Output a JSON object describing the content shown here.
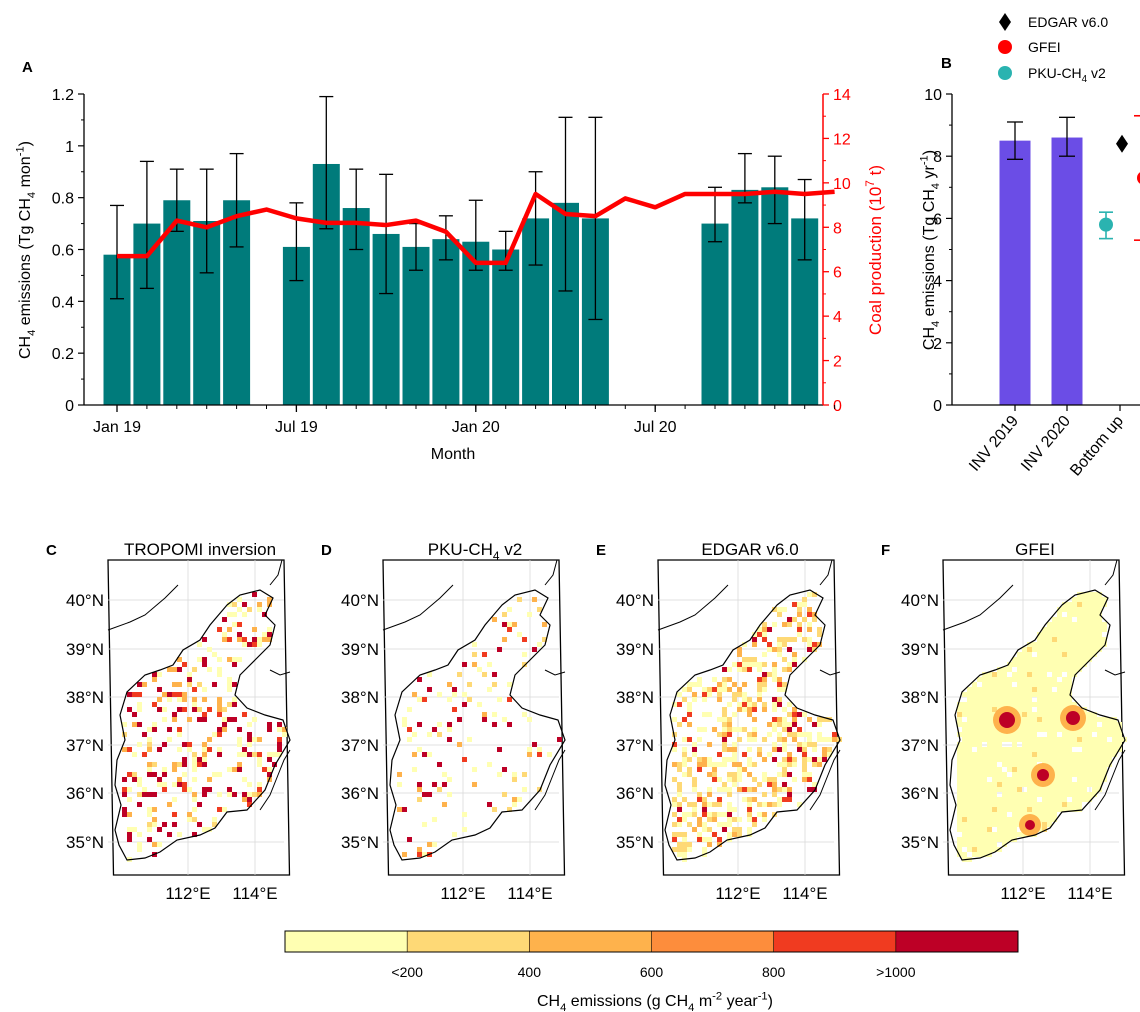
{
  "chart_data": [
    {
      "panel": "A",
      "type": "bar",
      "xlabel": "Month",
      "ylabel": "CH4 emissions (Tg CH4 mon-1)",
      "y2label": "Coal production (10^7 t)",
      "ylim": [
        0,
        1.2
      ],
      "y2lim": [
        0,
        14
      ],
      "ylabel_parts": {
        "a": "CH",
        "a_sub": "4",
        "b": " emissions (Tg CH",
        "b_sub": "4",
        "c": " mon",
        "c_sup": "-1",
        "d": ")"
      },
      "y2label_parts": {
        "a": "Coal production (10",
        "a_sup": "7",
        "b": " t)"
      },
      "yticks": [
        "0",
        "0.2",
        "0.4",
        "0.6",
        "0.8",
        "1",
        "1.2"
      ],
      "y2ticks": [
        "0",
        "2",
        "4",
        "6",
        "8",
        "10",
        "12",
        "14"
      ],
      "xtick_labels": [
        {
          "month": 0,
          "label": "Jan 19"
        },
        {
          "month": 6,
          "label": "Jul 19"
        },
        {
          "month": 12,
          "label": "Jan 20"
        },
        {
          "month": 18,
          "label": "Jul 20"
        }
      ],
      "bars": [
        {
          "month": 0,
          "value": 0.58,
          "lo": 0.41,
          "hi": 0.77
        },
        {
          "month": 1,
          "value": 0.7,
          "lo": 0.45,
          "hi": 0.94
        },
        {
          "month": 2,
          "value": 0.79,
          "lo": 0.67,
          "hi": 0.91
        },
        {
          "month": 3,
          "value": 0.71,
          "lo": 0.51,
          "hi": 0.91
        },
        {
          "month": 4,
          "value": 0.79,
          "lo": 0.61,
          "hi": 0.97
        },
        {
          "month": 6,
          "value": 0.61,
          "lo": 0.48,
          "hi": 0.78
        },
        {
          "month": 7,
          "value": 0.93,
          "lo": 0.68,
          "hi": 1.19
        },
        {
          "month": 8,
          "value": 0.76,
          "lo": 0.6,
          "hi": 0.91
        },
        {
          "month": 9,
          "value": 0.66,
          "lo": 0.43,
          "hi": 0.89
        },
        {
          "month": 10,
          "value": 0.61,
          "lo": 0.52,
          "hi": 0.7
        },
        {
          "month": 11,
          "value": 0.64,
          "lo": 0.56,
          "hi": 0.73
        },
        {
          "month": 12,
          "value": 0.63,
          "lo": 0.52,
          "hi": 0.79
        },
        {
          "month": 13,
          "value": 0.6,
          "lo": 0.52,
          "hi": 0.67
        },
        {
          "month": 14,
          "value": 0.72,
          "lo": 0.54,
          "hi": 0.9
        },
        {
          "month": 15,
          "value": 0.78,
          "lo": 0.44,
          "hi": 1.11
        },
        {
          "month": 16,
          "value": 0.72,
          "lo": 0.33,
          "hi": 1.11
        },
        {
          "month": 20,
          "value": 0.7,
          "lo": 0.63,
          "hi": 0.84
        },
        {
          "month": 21,
          "value": 0.83,
          "lo": 0.78,
          "hi": 0.97
        },
        {
          "month": 22,
          "value": 0.84,
          "lo": 0.7,
          "hi": 0.96
        },
        {
          "month": 23,
          "value": 0.72,
          "lo": 0.56,
          "hi": 0.87
        }
      ],
      "line": {
        "x": [
          0,
          1,
          2,
          3,
          4,
          5,
          6,
          7,
          8,
          9,
          10,
          11,
          12,
          13,
          14,
          15,
          16,
          17,
          18,
          19,
          20,
          21,
          22,
          23,
          24
        ],
        "y": [
          6.7,
          6.7,
          8.3,
          8.0,
          8.5,
          8.8,
          8.4,
          8.2,
          8.2,
          8.1,
          8.3,
          7.8,
          6.4,
          6.4,
          9.5,
          8.6,
          8.5,
          9.3,
          8.9,
          9.5,
          9.5,
          9.5,
          9.6,
          9.5,
          9.6
        ]
      },
      "bar_color": "#007b7b",
      "line_color": "#ff0000"
    },
    {
      "panel": "B",
      "type": "bar",
      "ylabel": "CH4 emissions (Tg CH4 yr-1)",
      "ylabel_parts": {
        "a": "CH",
        "a_sub": "4",
        "b": " emissions (Tg CH",
        "b_sub": "4",
        "c": " yr",
        "c_sup": "-1",
        "d": ")"
      },
      "ylim": [
        0,
        10
      ],
      "yticks": [
        "0",
        "2",
        "4",
        "6",
        "8",
        "10"
      ],
      "categories": [
        "INV 2019",
        "INV 2020",
        "Bottom up"
      ],
      "bars": [
        {
          "label": "INV 2019",
          "value": 8.5,
          "lo": 7.9,
          "hi": 9.1
        },
        {
          "label": "INV 2020",
          "value": 8.6,
          "lo": 8.0,
          "hi": 9.25
        }
      ],
      "bottom_up": [
        {
          "name": "EDGAR v6.0",
          "value": 8.4,
          "marker": "diamond",
          "color": "#000000"
        },
        {
          "name": "GFEI",
          "value": 7.3,
          "lo": 5.3,
          "hi": 9.3,
          "marker": "circle",
          "color": "#ff0000"
        },
        {
          "name": "PKU-CH4 v2",
          "value": 5.8,
          "lo": 5.35,
          "hi": 6.2,
          "marker": "circle",
          "color": "#2ab3b0"
        }
      ],
      "legend": [
        {
          "name": "EDGAR v6.0",
          "parts": {
            "a": "EDGAR v6.0"
          }
        },
        {
          "name": "GFEI",
          "parts": {
            "a": "GFEI"
          }
        },
        {
          "name": "PKU-CH4 v2",
          "parts": {
            "a": "PKU-CH",
            "a_sub": "4",
            "b": " v2"
          }
        }
      ],
      "bar_color": "#6b4de6"
    },
    {
      "type": "heatmap",
      "panels": [
        {
          "letter": "C",
          "title": "TROPOMI inversion",
          "title_parts": {
            "a": "TROPOMI inversion"
          }
        },
        {
          "letter": "D",
          "title": "PKU-CH4 v2",
          "title_parts": {
            "a": "PKU-CH",
            "a_sub": "4",
            "b": " v2"
          }
        },
        {
          "letter": "E",
          "title": "EDGAR v6.0",
          "title_parts": {
            "a": "EDGAR v6.0"
          }
        },
        {
          "letter": "F",
          "title": "GFEI",
          "title_parts": {
            "a": "GFEI"
          }
        }
      ],
      "lat_labels": [
        "40°N",
        "39°N",
        "38°N",
        "37°N",
        "36°N",
        "35°N"
      ],
      "lon_labels": [
        "112°E",
        "114°E"
      ],
      "colorbar": {
        "colors": [
          "#ffffb2",
          "#fed976",
          "#feb24c",
          "#fd8d3c",
          "#f03b20",
          "#bd0026"
        ],
        "ticks": [
          "<200",
          "400",
          "600",
          "800",
          ">1000"
        ],
        "label": "CH4 emissions (g CH4 m-2 year-1)",
        "label_parts": {
          "a": "CH",
          "a_sub": "4",
          "b": " emissions (g CH",
          "b_sub": "4",
          "c": " m",
          "c_sup": "-2",
          "d": " year",
          "d_sup": "-1",
          "e": ")"
        }
      }
    }
  ]
}
